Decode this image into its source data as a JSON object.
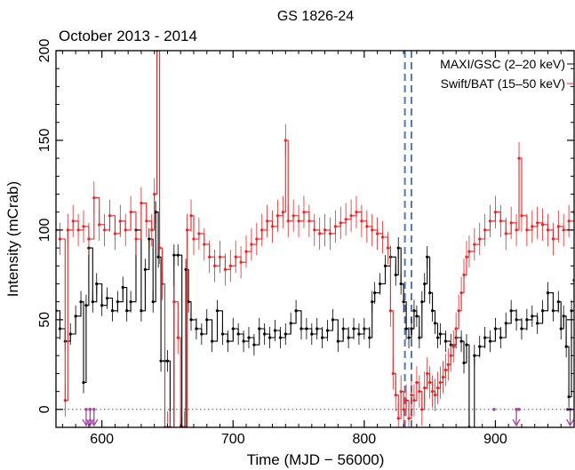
{
  "chart_data": {
    "type": "line",
    "title": "GS 1826-24",
    "subtitle": "October 2013 - 2014",
    "xlabel": "Time (MJD − 56000)",
    "ylabel": "Intensity (mCrab)",
    "xlim": [
      565,
      960
    ],
    "ylim": [
      -10,
      200
    ],
    "xticks": [
      600,
      700,
      800,
      900
    ],
    "xtick_labels": [
      "600",
      "700",
      "800",
      "900"
    ],
    "yticks": [
      0,
      50,
      100,
      150,
      200
    ],
    "ytick_labels": [
      "0",
      "50",
      "100",
      "150",
      "200"
    ],
    "legend_position": "top-right",
    "zero_line": {
      "y": 0,
      "style": "dotted"
    },
    "vertical_markers": {
      "x": [
        831,
        836
      ],
      "color": "#5577bb",
      "style": "dashed"
    },
    "upper_limit_arrows": {
      "x": [
        588,
        591,
        594,
        916,
        957
      ],
      "color": "#aa44aa"
    },
    "upper_limit_dots": {
      "x": [
        899,
        918,
        955
      ],
      "color": "#aa44aa"
    },
    "series": [
      {
        "name": "MAXI/GSC (2–20 keV)",
        "color": "#000000",
        "points": [
          [
            565,
            55
          ],
          [
            568,
            45
          ],
          [
            572,
            38
          ],
          [
            576,
            42
          ],
          [
            580,
            52
          ],
          [
            584,
            60
          ],
          [
            586,
            15
          ],
          [
            588,
            58
          ],
          [
            590,
            90
          ],
          [
            593,
            60
          ],
          [
            596,
            70
          ],
          [
            600,
            58
          ],
          [
            604,
            62
          ],
          [
            608,
            55
          ],
          [
            612,
            60
          ],
          [
            616,
            68
          ],
          [
            619,
            55
          ],
          [
            622,
            60
          ],
          [
            626,
            100
          ],
          [
            630,
            55
          ],
          [
            633,
            78
          ],
          [
            636,
            95
          ],
          [
            639,
            60
          ],
          [
            641,
            110
          ],
          [
            643,
            85
          ],
          [
            645,
            27
          ],
          [
            648,
            27
          ],
          [
            650,
            27
          ],
          [
            652,
            -10
          ],
          [
            655,
            86
          ],
          [
            658,
            86
          ],
          [
            661,
            -10
          ],
          [
            664,
            78
          ],
          [
            666,
            60
          ],
          [
            668,
            50
          ],
          [
            672,
            45
          ],
          [
            676,
            42
          ],
          [
            680,
            50
          ],
          [
            684,
            38
          ],
          [
            688,
            55
          ],
          [
            692,
            42
          ],
          [
            696,
            38
          ],
          [
            700,
            45
          ],
          [
            704,
            42
          ],
          [
            708,
            38
          ],
          [
            712,
            40
          ],
          [
            716,
            36
          ],
          [
            720,
            45
          ],
          [
            724,
            42
          ],
          [
            728,
            40
          ],
          [
            732,
            44
          ],
          [
            736,
            40
          ],
          [
            740,
            42
          ],
          [
            744,
            48
          ],
          [
            748,
            55
          ],
          [
            752,
            45
          ],
          [
            756,
            45
          ],
          [
            760,
            42
          ],
          [
            764,
            45
          ],
          [
            768,
            40
          ],
          [
            772,
            44
          ],
          [
            776,
            50
          ],
          [
            780,
            38
          ],
          [
            784,
            45
          ],
          [
            788,
            40
          ],
          [
            792,
            45
          ],
          [
            796,
            42
          ],
          [
            800,
            45
          ],
          [
            804,
            40
          ],
          [
            806,
            60
          ],
          [
            808,
            65
          ],
          [
            812,
            70
          ],
          [
            816,
            80
          ],
          [
            820,
            85
          ],
          [
            824,
            75
          ],
          [
            826,
            90
          ],
          [
            828,
            70
          ],
          [
            830,
            60
          ],
          [
            832,
            45
          ],
          [
            834,
            40
          ],
          [
            836,
            45
          ],
          [
            838,
            55
          ],
          [
            840,
            52
          ],
          [
            842,
            40
          ],
          [
            844,
            60
          ],
          [
            846,
            70
          ],
          [
            848,
            85
          ],
          [
            850,
            65
          ],
          [
            852,
            55
          ],
          [
            854,
            48
          ],
          [
            856,
            40
          ],
          [
            858,
            42
          ],
          [
            862,
            38
          ],
          [
            866,
            36
          ],
          [
            870,
            40
          ],
          [
            874,
            38
          ],
          [
            876,
            26
          ],
          [
            878,
            36
          ],
          [
            880,
            -10
          ],
          [
            884,
            30
          ],
          [
            888,
            35
          ],
          [
            892,
            40
          ],
          [
            896,
            38
          ],
          [
            900,
            45
          ],
          [
            904,
            40
          ],
          [
            908,
            48
          ],
          [
            912,
            55
          ],
          [
            916,
            50
          ],
          [
            920,
            45
          ],
          [
            924,
            50
          ],
          [
            928,
            52
          ],
          [
            932,
            48
          ],
          [
            936,
            55
          ],
          [
            940,
            65
          ],
          [
            944,
            55
          ],
          [
            948,
            60
          ],
          [
            950,
            45
          ],
          [
            952,
            52
          ],
          [
            954,
            35
          ],
          [
            956,
            7
          ],
          [
            958,
            55
          ],
          [
            960,
            72
          ]
        ]
      },
      {
        "name": "Swift/BAT (15–50 keV)",
        "color": "#ee2222",
        "points": [
          [
            565,
            100
          ],
          [
            568,
            95
          ],
          [
            572,
            5
          ],
          [
            574,
            100
          ],
          [
            578,
            105
          ],
          [
            582,
            100
          ],
          [
            586,
            102
          ],
          [
            590,
            95
          ],
          [
            594,
            118
          ],
          [
            598,
            103
          ],
          [
            602,
            100
          ],
          [
            606,
            108
          ],
          [
            610,
            98
          ],
          [
            614,
            105
          ],
          [
            618,
            100
          ],
          [
            622,
            110
          ],
          [
            626,
            95
          ],
          [
            630,
            115
          ],
          [
            634,
            105
          ],
          [
            638,
            100
          ],
          [
            640,
            120
          ],
          [
            642,
            200
          ],
          [
            644,
            90
          ],
          [
            646,
            70
          ],
          [
            648,
            -10
          ],
          [
            650,
            -10
          ],
          [
            652,
            -10
          ],
          [
            655,
            60
          ],
          [
            658,
            40
          ],
          [
            660,
            -10
          ],
          [
            663,
            -10
          ],
          [
            665,
            100
          ],
          [
            668,
            108
          ],
          [
            670,
            95
          ],
          [
            674,
            98
          ],
          [
            678,
            92
          ],
          [
            682,
            85
          ],
          [
            686,
            80
          ],
          [
            690,
            85
          ],
          [
            694,
            78
          ],
          [
            698,
            80
          ],
          [
            702,
            85
          ],
          [
            706,
            82
          ],
          [
            710,
            88
          ],
          [
            714,
            92
          ],
          [
            718,
            95
          ],
          [
            722,
            100
          ],
          [
            726,
            105
          ],
          [
            730,
            102
          ],
          [
            734,
            108
          ],
          [
            738,
            110
          ],
          [
            740,
            150
          ],
          [
            742,
            105
          ],
          [
            746,
            108
          ],
          [
            750,
            105
          ],
          [
            754,
            110
          ],
          [
            758,
            105
          ],
          [
            762,
            100
          ],
          [
            766,
            98
          ],
          [
            770,
            100
          ],
          [
            774,
            98
          ],
          [
            778,
            102
          ],
          [
            782,
            104
          ],
          [
            786,
            106
          ],
          [
            790,
            108
          ],
          [
            794,
            110
          ],
          [
            798,
            105
          ],
          [
            802,
            102
          ],
          [
            806,
            100
          ],
          [
            810,
            98
          ],
          [
            814,
            96
          ],
          [
            818,
            90
          ],
          [
            820,
            55
          ],
          [
            822,
            20
          ],
          [
            824,
            8
          ],
          [
            826,
            -5
          ],
          [
            828,
            10
          ],
          [
            830,
            0
          ],
          [
            832,
            5
          ],
          [
            834,
            -5
          ],
          [
            836,
            8
          ],
          [
            838,
            5
          ],
          [
            840,
            15
          ],
          [
            842,
            10
          ],
          [
            844,
            0
          ],
          [
            846,
            12
          ],
          [
            848,
            20
          ],
          [
            850,
            15
          ],
          [
            852,
            10
          ],
          [
            854,
            8
          ],
          [
            856,
            12
          ],
          [
            858,
            15
          ],
          [
            860,
            18
          ],
          [
            862,
            22
          ],
          [
            864,
            25
          ],
          [
            866,
            30
          ],
          [
            868,
            35
          ],
          [
            870,
            45
          ],
          [
            872,
            55
          ],
          [
            874,
            65
          ],
          [
            876,
            75
          ],
          [
            878,
            85
          ],
          [
            880,
            88
          ],
          [
            884,
            92
          ],
          [
            888,
            95
          ],
          [
            892,
            100
          ],
          [
            896,
            105
          ],
          [
            900,
            110
          ],
          [
            904,
            105
          ],
          [
            908,
            98
          ],
          [
            912,
            104
          ],
          [
            916,
            100
          ],
          [
            918,
            140
          ],
          [
            920,
            108
          ],
          [
            924,
            100
          ],
          [
            928,
            102
          ],
          [
            932,
            104
          ],
          [
            936,
            103
          ],
          [
            940,
            100
          ],
          [
            944,
            95
          ],
          [
            948,
            102
          ],
          [
            952,
            100
          ],
          [
            956,
            105
          ],
          [
            960,
            110
          ]
        ]
      }
    ]
  }
}
